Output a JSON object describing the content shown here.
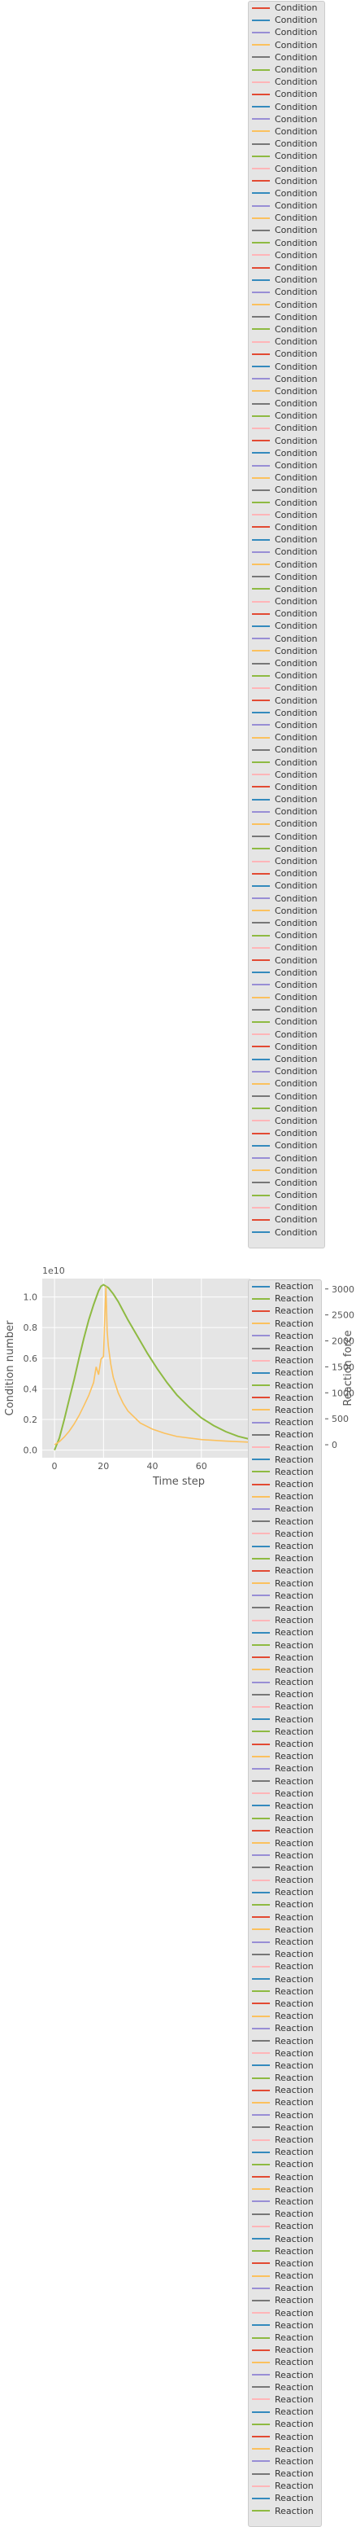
{
  "chart_data": {
    "type": "line",
    "x_label": "Time step",
    "y_label_left": "Condition number",
    "y_label_right": "Reaction force",
    "y_offset_label": "1e10",
    "x_ticks": [
      "0",
      "20",
      "40",
      "60"
    ],
    "y_left_ticks": [
      "0.0",
      "0.2",
      "0.4",
      "0.6",
      "0.8",
      "1.0"
    ],
    "y_right_ticks": [
      "0",
      "500",
      "1000",
      "1500",
      "2000",
      "2500",
      "3000"
    ],
    "x_range": [
      -5,
      80
    ],
    "y_left_range": [
      -0.05,
      1.12
    ],
    "y_right_range": [
      -250,
      3200
    ],
    "legend_condition": {
      "label": "Condition",
      "count": 100,
      "colors": [
        "#e24a33",
        "#348abd",
        "#988ed5",
        "#fbc15e",
        "#777777",
        "#8eba42",
        "#ffb5b8"
      ]
    },
    "legend_reaction": {
      "label": "Reaction",
      "count": 100,
      "colors": [
        "#348abd",
        "#8eba42",
        "#e24a33",
        "#fbc15e",
        "#988ed5",
        "#777777",
        "#ffb5b8"
      ]
    },
    "series_condition_number": {
      "color": "#8eba42",
      "x": [
        0,
        2,
        4,
        6,
        8,
        10,
        12,
        14,
        16,
        18,
        19,
        20,
        22,
        24,
        26,
        28,
        30,
        34,
        38,
        42,
        46,
        50,
        55,
        60,
        65,
        70,
        75,
        80
      ],
      "y": [
        0.0,
        0.08,
        0.2,
        0.33,
        0.46,
        0.6,
        0.73,
        0.85,
        0.95,
        1.04,
        1.07,
        1.08,
        1.06,
        1.02,
        0.97,
        0.91,
        0.85,
        0.74,
        0.63,
        0.53,
        0.44,
        0.36,
        0.28,
        0.21,
        0.16,
        0.12,
        0.09,
        0.07
      ]
    },
    "series_reaction_force": {
      "color": "#fbc15e",
      "x": [
        0,
        2,
        4,
        6,
        8,
        10,
        12,
        14,
        16,
        17,
        18,
        19,
        20,
        20.5,
        21,
        21.5,
        22,
        23,
        24,
        26,
        28,
        30,
        35,
        40,
        45,
        50,
        60,
        70,
        80
      ],
      "y": [
        0,
        60,
        150,
        260,
        400,
        560,
        750,
        950,
        1200,
        1500,
        1350,
        1650,
        1700,
        2400,
        3050,
        2200,
        1900,
        1550,
        1300,
        1000,
        800,
        650,
        420,
        300,
        220,
        160,
        100,
        70,
        50
      ]
    }
  }
}
